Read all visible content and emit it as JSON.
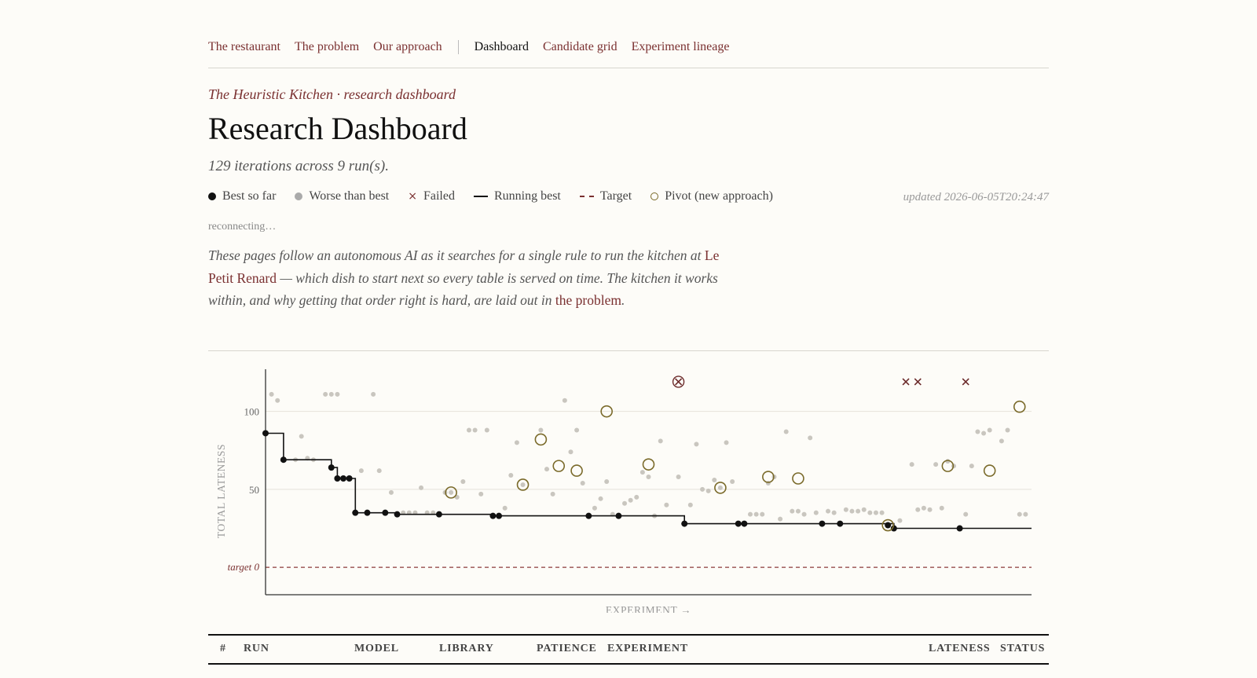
{
  "nav": {
    "items": [
      {
        "label": "The restaurant"
      },
      {
        "label": "The problem"
      },
      {
        "label": "Our approach"
      },
      {
        "label": "Dashboard",
        "active": true
      },
      {
        "label": "Candidate grid"
      },
      {
        "label": "Experiment lineage"
      }
    ]
  },
  "header": {
    "kicker": "The Heuristic Kitchen · research dashboard",
    "title": "Research Dashboard",
    "subtitle": "129 iterations across 9 run(s)."
  },
  "legend": {
    "best": "Best so far",
    "worse": "Worse than best",
    "failed": "Failed",
    "running": "Running best",
    "target": "Target",
    "pivot": "Pivot (new approach)"
  },
  "updated": "updated 2026-06-05T20:24:47",
  "status": "reconnecting…",
  "intro": {
    "part1": "These pages follow an autonomous AI as it searches for a single rule to run the kitchen at ",
    "link1": "Le Petit Renard",
    "part2": " — which dish to start next so every table is served on time. The kitchen it works within, and why getting that order right is hard, are laid out in ",
    "link2": "the problem",
    "part3": "."
  },
  "chart_data": {
    "type": "scatter",
    "xlabel": "EXPERIMENT →",
    "ylabel": "TOTAL LATENESS",
    "yticks": [
      50,
      100
    ],
    "ylim": [
      -9,
      122
    ],
    "xlim": [
      0,
      128
    ],
    "target": {
      "value": 0,
      "label": "target 0"
    },
    "grid": true,
    "best": [
      [
        0,
        86
      ],
      [
        3,
        69
      ],
      [
        11,
        64
      ],
      [
        12,
        57
      ],
      [
        13,
        57
      ],
      [
        14,
        57
      ],
      [
        15,
        35
      ],
      [
        17,
        35
      ],
      [
        20,
        35
      ],
      [
        22,
        34
      ],
      [
        29,
        34
      ],
      [
        38,
        33
      ],
      [
        39,
        33
      ],
      [
        54,
        33
      ],
      [
        59,
        33
      ],
      [
        70,
        28
      ],
      [
        79,
        28
      ],
      [
        80,
        28
      ],
      [
        93,
        28
      ],
      [
        96,
        28
      ],
      [
        104,
        27
      ],
      [
        105,
        25
      ],
      [
        116,
        25
      ]
    ],
    "running_best": [
      [
        0,
        86
      ],
      [
        3,
        86
      ],
      [
        3,
        69
      ],
      [
        11,
        69
      ],
      [
        11,
        64
      ],
      [
        12,
        64
      ],
      [
        12,
        57
      ],
      [
        15,
        57
      ],
      [
        15,
        35
      ],
      [
        22,
        35
      ],
      [
        22,
        34
      ],
      [
        38,
        34
      ],
      [
        38,
        33
      ],
      [
        70,
        33
      ],
      [
        70,
        28
      ],
      [
        105,
        28
      ],
      [
        105,
        25
      ],
      [
        128,
        25
      ]
    ],
    "worse": [
      [
        1,
        111
      ],
      [
        2,
        107
      ],
      [
        5,
        69
      ],
      [
        6,
        84
      ],
      [
        7,
        70
      ],
      [
        8,
        69
      ],
      [
        10,
        111
      ],
      [
        11,
        111
      ],
      [
        12,
        111
      ],
      [
        16,
        62
      ],
      [
        18,
        111
      ],
      [
        19,
        62
      ],
      [
        21,
        48
      ],
      [
        23,
        35
      ],
      [
        24,
        35
      ],
      [
        25,
        35
      ],
      [
        26,
        51
      ],
      [
        27,
        35
      ],
      [
        28,
        35
      ],
      [
        30,
        48
      ],
      [
        31,
        48
      ],
      [
        32,
        45
      ],
      [
        33,
        55
      ],
      [
        34,
        88
      ],
      [
        35,
        88
      ],
      [
        36,
        47
      ],
      [
        37,
        88
      ],
      [
        40,
        38
      ],
      [
        41,
        59
      ],
      [
        42,
        80
      ],
      [
        43,
        53
      ],
      [
        46,
        88
      ],
      [
        47,
        63
      ],
      [
        48,
        47
      ],
      [
        50,
        107
      ],
      [
        51,
        74
      ],
      [
        52,
        88
      ],
      [
        53,
        54
      ],
      [
        55,
        38
      ],
      [
        56,
        44
      ],
      [
        57,
        55
      ],
      [
        58,
        34
      ],
      [
        60,
        41
      ],
      [
        61,
        43
      ],
      [
        62,
        45
      ],
      [
        63,
        61
      ],
      [
        64,
        58
      ],
      [
        65,
        33
      ],
      [
        66,
        81
      ],
      [
        67,
        40
      ],
      [
        69,
        58
      ],
      [
        71,
        40
      ],
      [
        72,
        79
      ],
      [
        73,
        50
      ],
      [
        74,
        49
      ],
      [
        75,
        56
      ],
      [
        76,
        51
      ],
      [
        77,
        80
      ],
      [
        78,
        55
      ],
      [
        81,
        34
      ],
      [
        82,
        34
      ],
      [
        83,
        34
      ],
      [
        84,
        54
      ],
      [
        85,
        58
      ],
      [
        86,
        31
      ],
      [
        87,
        87
      ],
      [
        88,
        36
      ],
      [
        89,
        36
      ],
      [
        90,
        34
      ],
      [
        91,
        83
      ],
      [
        92,
        35
      ],
      [
        94,
        36
      ],
      [
        95,
        35
      ],
      [
        97,
        37
      ],
      [
        98,
        36
      ],
      [
        99,
        36
      ],
      [
        100,
        37
      ],
      [
        101,
        35
      ],
      [
        102,
        35
      ],
      [
        103,
        35
      ],
      [
        106,
        30
      ],
      [
        108,
        66
      ],
      [
        109,
        37
      ],
      [
        110,
        38
      ],
      [
        111,
        37
      ],
      [
        112,
        66
      ],
      [
        113,
        38
      ],
      [
        114,
        68
      ],
      [
        115,
        65
      ],
      [
        117,
        34
      ],
      [
        118,
        65
      ],
      [
        119,
        87
      ],
      [
        120,
        86
      ],
      [
        121,
        88
      ],
      [
        123,
        81
      ],
      [
        124,
        88
      ],
      [
        126,
        34
      ],
      [
        127,
        34
      ]
    ],
    "failed": [
      [
        69,
        119
      ],
      [
        107,
        119
      ],
      [
        109,
        119
      ],
      [
        117,
        119
      ]
    ],
    "pivots": [
      [
        31,
        48
      ],
      [
        43,
        53
      ],
      [
        46,
        82
      ],
      [
        49,
        65
      ],
      [
        52,
        62
      ],
      [
        57,
        100
      ],
      [
        64,
        66
      ],
      [
        76,
        51
      ],
      [
        84,
        58
      ],
      [
        89,
        57
      ],
      [
        104,
        27
      ],
      [
        114,
        65
      ],
      [
        121,
        62
      ],
      [
        126,
        103
      ]
    ]
  },
  "table": {
    "headers": [
      "#",
      "RUN",
      "MODEL",
      "LIBRARY",
      "PATIENCE",
      "EXPERIMENT",
      "LATENESS",
      "STATUS"
    ]
  }
}
